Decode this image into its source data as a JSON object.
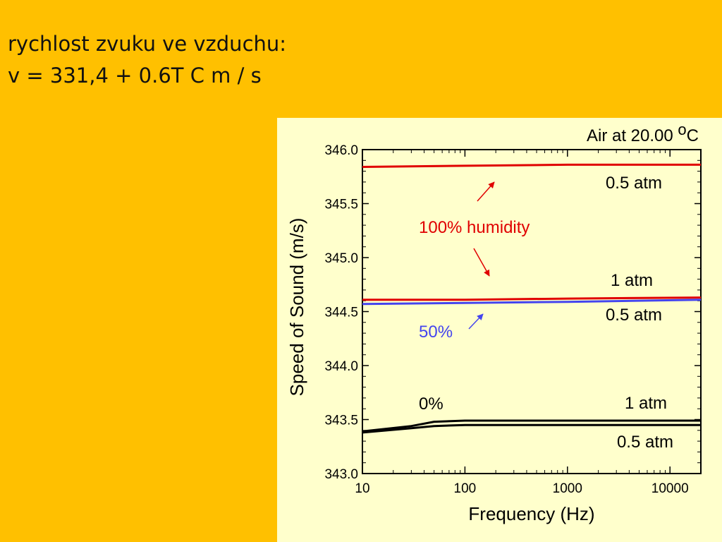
{
  "slide": {
    "line1": "rychlost zvuku ve vzduchu:",
    "line2": "v = 331,4 + 0.6T C m / s"
  },
  "chart_data": {
    "type": "line",
    "title": "Air at 20.00 °C",
    "title_prefix": "Air at 20.00 ",
    "title_sup": "o",
    "title_suffix": "C",
    "xlabel": "Frequency (Hz)",
    "ylabel": "Speed of Sound (m/s)",
    "xscale": "log",
    "xlim": [
      10,
      20000
    ],
    "ylim": [
      343.0,
      346.0
    ],
    "xticks": [
      "10",
      "100",
      "1000",
      "10000"
    ],
    "yticks": [
      "343.0",
      "343.5",
      "344.0",
      "344.5",
      "345.0",
      "345.5",
      "346.0"
    ],
    "grid": false,
    "series": [
      {
        "group": "100% humidity",
        "pressure": "0.5 atm",
        "color": "#e00000",
        "x": [
          10,
          100,
          1000,
          20000
        ],
        "y": [
          345.84,
          345.85,
          345.86,
          345.86
        ]
      },
      {
        "group": "100% humidity",
        "pressure": "1 atm",
        "color": "#e00000",
        "x": [
          10,
          100,
          1000,
          20000
        ],
        "y": [
          344.61,
          344.61,
          344.62,
          344.63
        ]
      },
      {
        "group": "50%",
        "pressure": "0.5 atm",
        "color": "#4444ee",
        "x": [
          10,
          100,
          1000,
          20000
        ],
        "y": [
          344.57,
          344.58,
          344.59,
          344.61
        ]
      },
      {
        "group": "0%",
        "pressure": "1 atm",
        "color": "#000000",
        "x": [
          10,
          30,
          50,
          100,
          1000,
          20000
        ],
        "y": [
          343.39,
          343.44,
          343.48,
          343.49,
          343.49,
          343.49
        ]
      },
      {
        "group": "0%",
        "pressure": "0.5 atm",
        "color": "#000000",
        "x": [
          10,
          30,
          50,
          100,
          1000,
          20000
        ],
        "y": [
          343.38,
          343.42,
          343.44,
          343.45,
          343.45,
          343.45
        ]
      }
    ],
    "annotations": {
      "humidity100": "100% humidity",
      "humidity50": "50%",
      "humidity0": "0%",
      "p_red_top": "0.5 atm",
      "p_red_bottom": "1 atm",
      "p_blue": "0.5 atm",
      "p_black_top": "1 atm",
      "p_black_bottom": "0.5 atm"
    },
    "colors": {
      "red": "#e00000",
      "blue": "#4444ee",
      "black": "#000000"
    }
  }
}
